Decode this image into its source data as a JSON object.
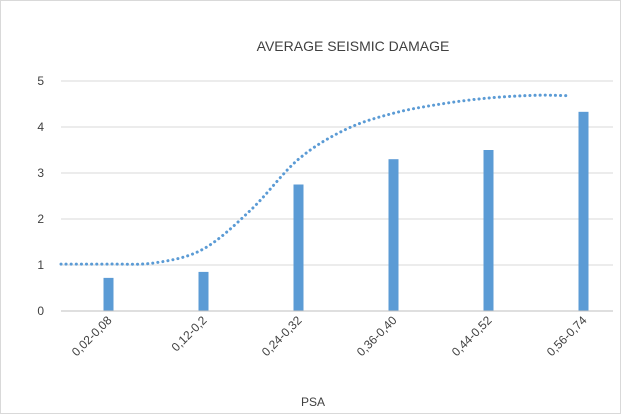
{
  "chart_data": {
    "type": "bar",
    "title": "AVERAGE SEISMIC DAMAGE",
    "xlabel": "PSA",
    "ylabel": "",
    "categories": [
      "0,02-0,08",
      "0,12-0,2",
      "0,24-0,32",
      "0,36-0,40",
      "0,44-0,52",
      "0,56-0,74"
    ],
    "series": [
      {
        "values": [
          0.72,
          0.85,
          2.75,
          3.3,
          3.5,
          4.33
        ]
      }
    ],
    "trendline": {
      "style": "dotted",
      "x": [
        0.0,
        0.5,
        1.0,
        1.5,
        2.0,
        2.5,
        3.0,
        3.5,
        4.0,
        4.5,
        5.0,
        5.35
      ],
      "y": [
        1.02,
        1.02,
        1.05,
        1.35,
        2.2,
        3.3,
        3.95,
        4.3,
        4.5,
        4.63,
        4.69,
        4.68
      ]
    },
    "ylim": [
      0,
      5
    ],
    "yticks": [
      0,
      1,
      2,
      3,
      4,
      5
    ],
    "grid": true,
    "legend": "none",
    "colors": {
      "bar": "#5b9bd5",
      "trend": "#5b9bd5",
      "grid": "#d9d9d9",
      "text": "#404040"
    }
  }
}
